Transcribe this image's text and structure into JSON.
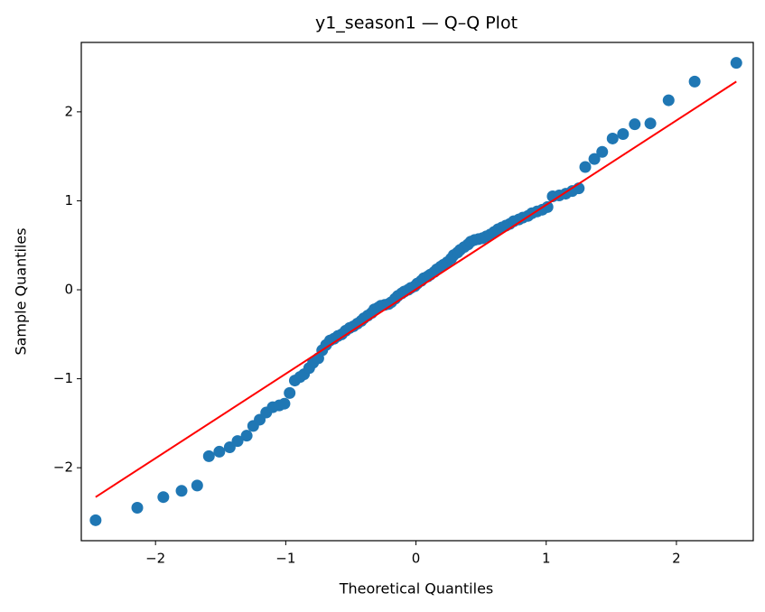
{
  "chart_data": {
    "type": "scatter",
    "title": "y1_season1 — Q–Q Plot",
    "x_label": "Theoretical Quantiles",
    "y_label": "Sample Quantiles",
    "points": {
      "color": "#1f77b4",
      "x": [
        -2.46,
        -2.14,
        -1.94,
        -1.8,
        -1.68,
        -1.59,
        -1.51,
        -1.43,
        -1.37,
        -1.3,
        -1.25,
        -1.2,
        -1.15,
        -1.1,
        -1.05,
        -1.01,
        -0.97,
        -0.93,
        -0.89,
        -0.86,
        -0.82,
        -0.79,
        -0.75,
        -0.72,
        -0.69,
        -0.66,
        -0.63,
        -0.6,
        -0.57,
        -0.54,
        -0.51,
        -0.48,
        -0.45,
        -0.42,
        -0.4,
        -0.37,
        -0.34,
        -0.32,
        -0.29,
        -0.27,
        -0.24,
        -0.21,
        -0.19,
        -0.16,
        -0.14,
        -0.11,
        -0.09,
        -0.06,
        -0.04,
        -0.01,
        0.01,
        0.04,
        0.06,
        0.09,
        0.11,
        0.14,
        0.16,
        0.19,
        0.21,
        0.24,
        0.27,
        0.29,
        0.32,
        0.34,
        0.37,
        0.4,
        0.42,
        0.45,
        0.48,
        0.51,
        0.54,
        0.57,
        0.6,
        0.63,
        0.66,
        0.69,
        0.72,
        0.75,
        0.79,
        0.82,
        0.86,
        0.89,
        0.93,
        0.97,
        1.01,
        1.05,
        1.1,
        1.15,
        1.2,
        1.25,
        1.3,
        1.37,
        1.43,
        1.51,
        1.59,
        1.68,
        1.8,
        1.94,
        2.14,
        2.46
      ],
      "y": [
        -2.59,
        -2.45,
        -2.33,
        -2.26,
        -2.2,
        -1.87,
        -1.82,
        -1.77,
        -1.7,
        -1.64,
        -1.53,
        -1.46,
        -1.38,
        -1.32,
        -1.3,
        -1.28,
        -1.16,
        -1.02,
        -0.98,
        -0.95,
        -0.88,
        -0.82,
        -0.77,
        -0.68,
        -0.62,
        -0.57,
        -0.55,
        -0.52,
        -0.5,
        -0.46,
        -0.43,
        -0.41,
        -0.38,
        -0.35,
        -0.32,
        -0.29,
        -0.26,
        -0.22,
        -0.2,
        -0.18,
        -0.17,
        -0.16,
        -0.14,
        -0.1,
        -0.07,
        -0.04,
        -0.02,
        0.0,
        0.02,
        0.04,
        0.07,
        0.1,
        0.13,
        0.15,
        0.17,
        0.2,
        0.23,
        0.26,
        0.28,
        0.31,
        0.35,
        0.39,
        0.42,
        0.45,
        0.48,
        0.51,
        0.54,
        0.56,
        0.57,
        0.58,
        0.6,
        0.62,
        0.65,
        0.68,
        0.7,
        0.72,
        0.74,
        0.77,
        0.79,
        0.81,
        0.83,
        0.86,
        0.88,
        0.9,
        0.93,
        1.05,
        1.06,
        1.08,
        1.11,
        1.14,
        1.38,
        1.47,
        1.55,
        1.7,
        1.75,
        1.86,
        1.87,
        2.13,
        2.34,
        2.55
      ]
    },
    "reference_line": {
      "color": "#ff0000",
      "x": [
        -2.46,
        2.46
      ],
      "y": [
        -2.33,
        2.34
      ]
    },
    "xlim": [
      -2.57,
      2.59
    ],
    "ylim": [
      -2.82,
      2.78
    ],
    "xticks": [
      {
        "value": -2,
        "label": "−2"
      },
      {
        "value": -1,
        "label": "−1"
      },
      0,
      1,
      2
    ],
    "yticks": [
      {
        "value": -2,
        "label": "−2"
      },
      {
        "value": -1,
        "label": "−1"
      },
      0,
      1,
      2
    ]
  }
}
